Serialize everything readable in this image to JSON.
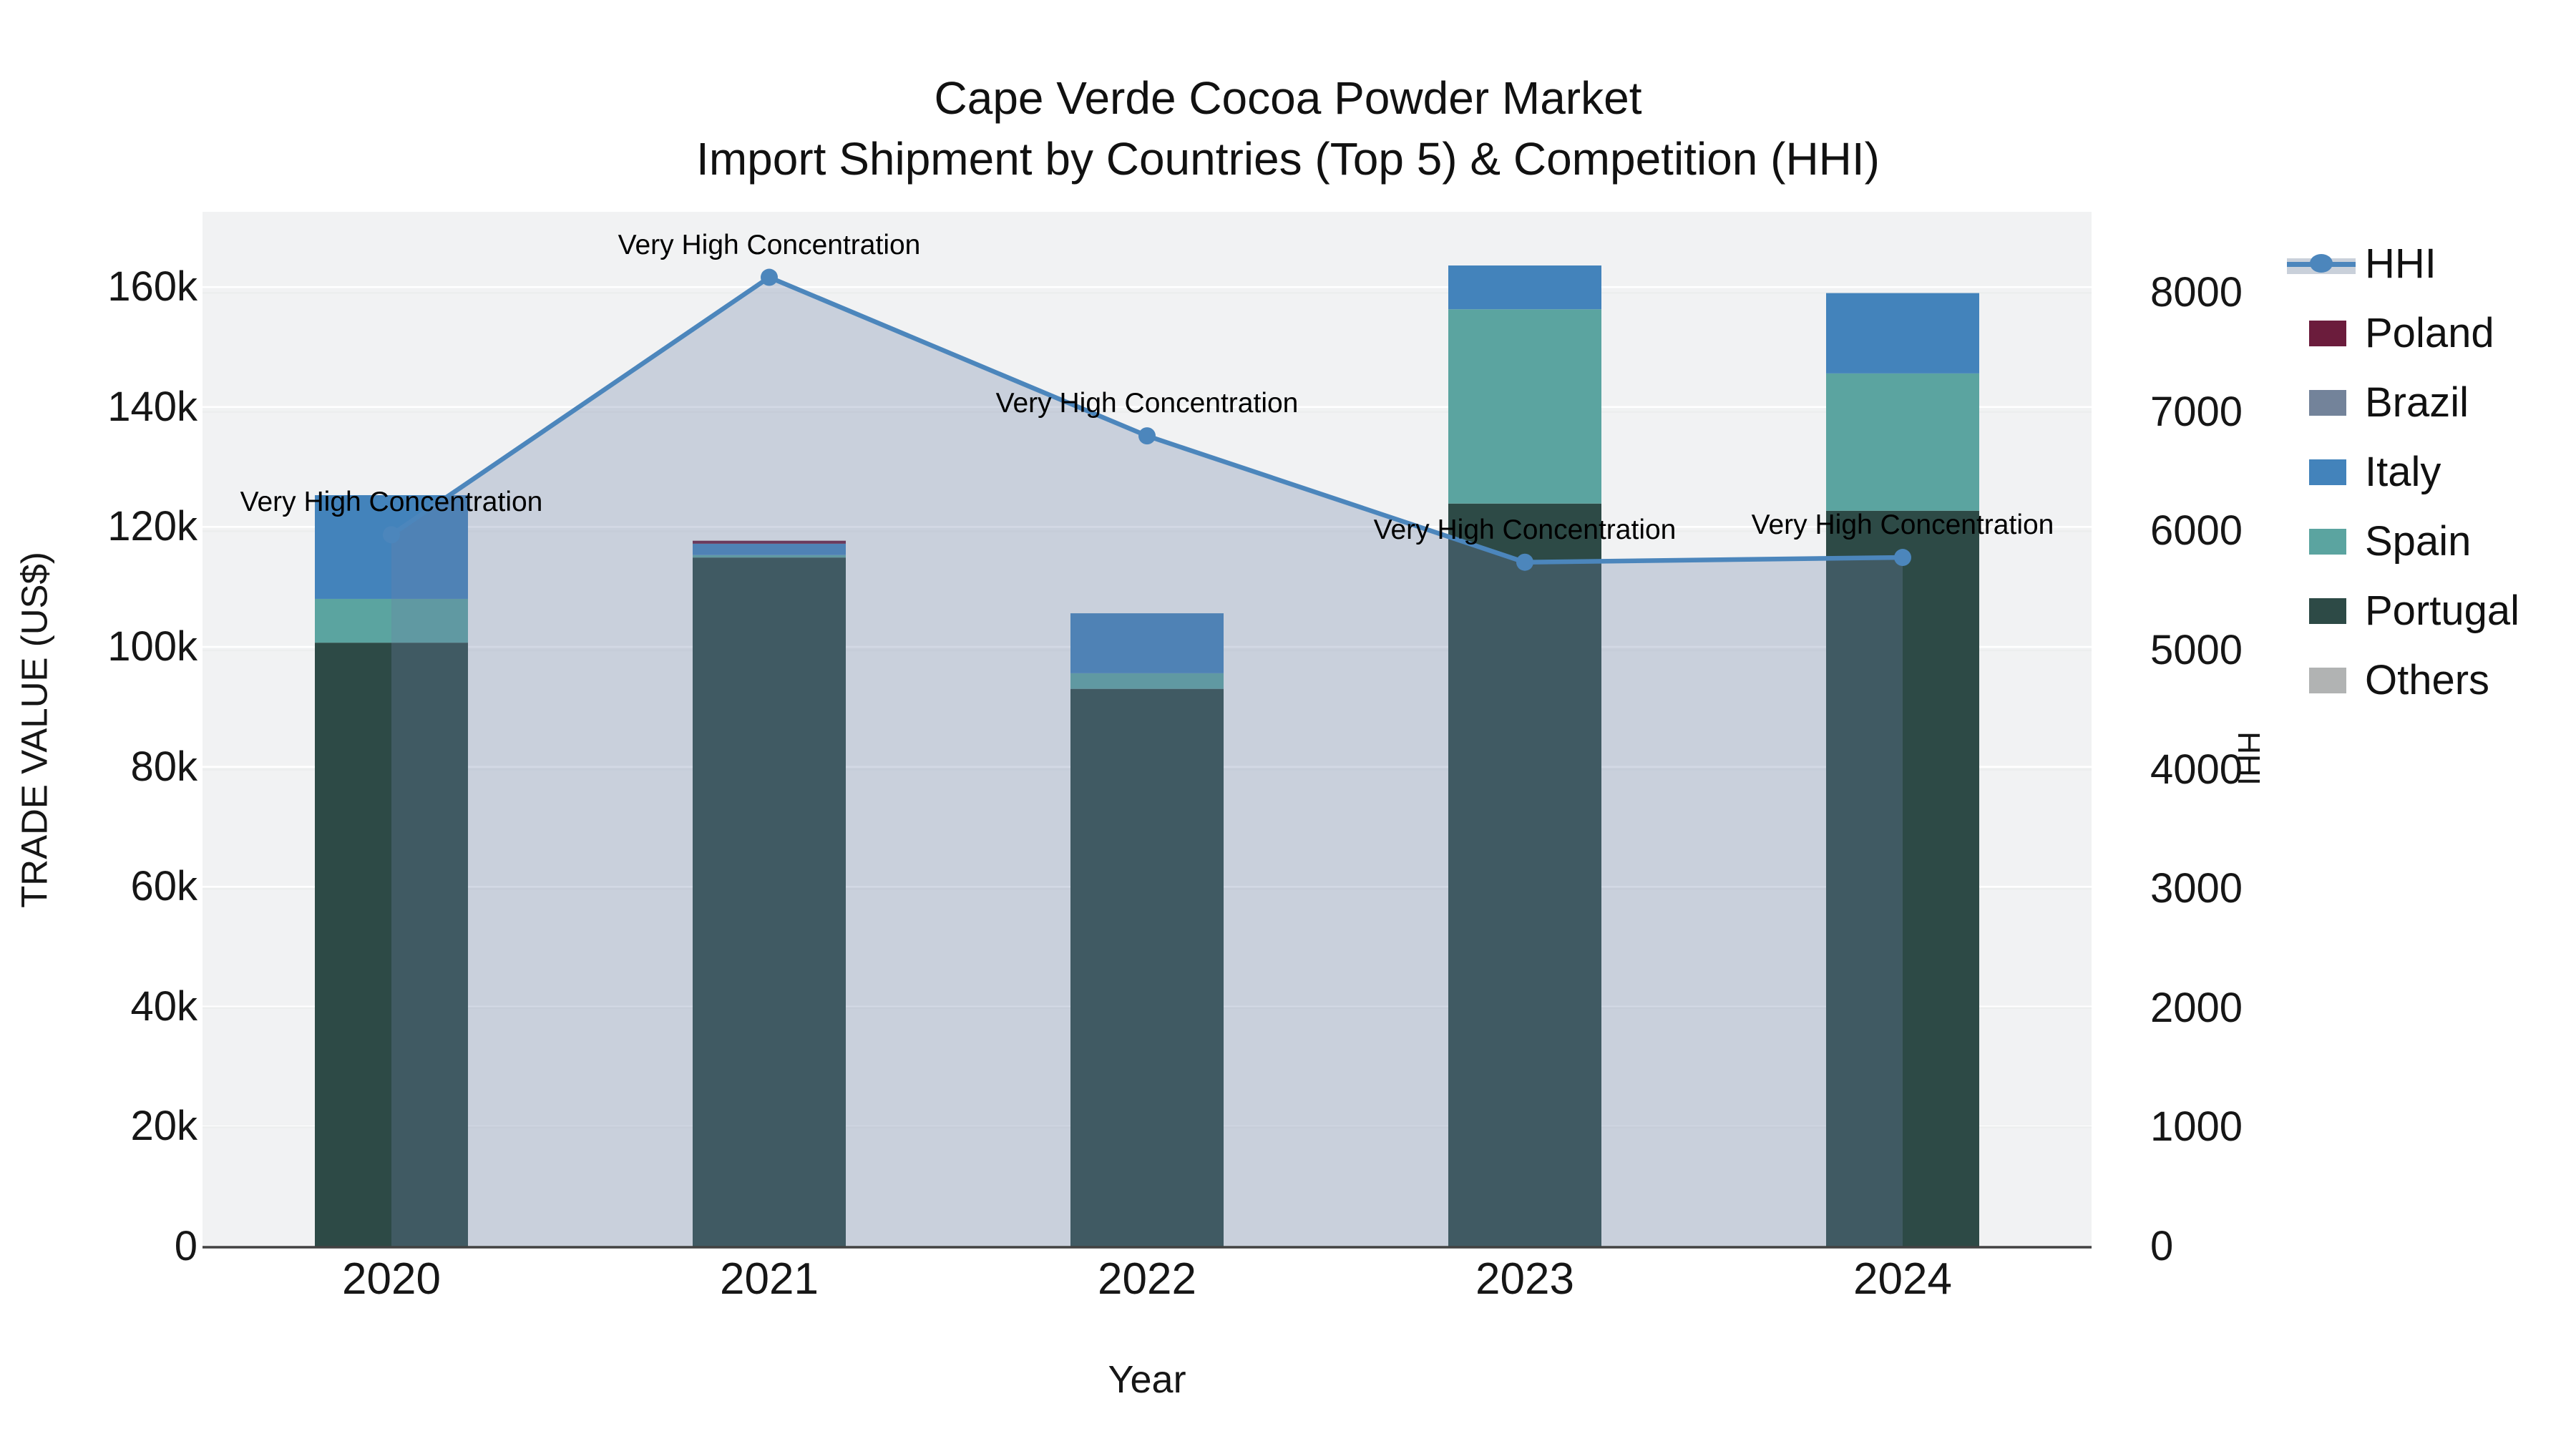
{
  "title": {
    "line1": "Cape Verde Cocoa Powder Market",
    "line2": "Import Shipment by Countries (Top 5) & Competition (HHI)"
  },
  "annotation_text": "Very High Concentration",
  "colors": {
    "figure_bg": "#ffffff",
    "plot_bg": "#f1f2f3",
    "grid_left": "#ffffff",
    "grid_right": "#eceeee",
    "axis_line": "#424242",
    "hhi_line": "#4c86bc",
    "hhi_fill": "rgba(110,130,170,0.30)",
    "poland": "#6b1c3c",
    "brazil": "#73839a",
    "italy": "#4383bb",
    "spain": "#5ba4a0",
    "portugal": "#2d4a46",
    "others": "#b1b3b3"
  },
  "axes": {
    "x": {
      "label": "Year",
      "ticks": [
        "2020",
        "2021",
        "2022",
        "2023",
        "2024"
      ]
    },
    "y_left": {
      "label": "TRADE VALUE (US$)",
      "ticks": [
        "0",
        "20k",
        "40k",
        "60k",
        "80k",
        "100k",
        "120k",
        "140k",
        "160k"
      ],
      "min": 0,
      "max": 170000,
      "step": 20000
    },
    "y_right": {
      "label": "HHI",
      "ticks": [
        "0",
        "1000",
        "2000",
        "3000",
        "4000",
        "5000",
        "6000",
        "7000",
        "8000"
      ],
      "min": 0,
      "max": 8500,
      "step": 1000
    }
  },
  "legend": {
    "items": [
      {
        "label": "HHI",
        "swatch": "line",
        "color": "#4c86bc"
      },
      {
        "label": "Poland",
        "swatch": "color",
        "color": "#6b1c3c"
      },
      {
        "label": "Brazil",
        "swatch": "color",
        "color": "#73839a"
      },
      {
        "label": "Italy",
        "swatch": "color",
        "color": "#4383bb"
      },
      {
        "label": "Spain",
        "swatch": "color",
        "color": "#5ba4a0"
      },
      {
        "label": "Portugal",
        "swatch": "color",
        "color": "#2d4a46"
      },
      {
        "label": "Others",
        "swatch": "color",
        "color": "#b1b3b3"
      }
    ]
  },
  "chart_data": {
    "type": "combo-stacked-bar-line",
    "categories": [
      "2020",
      "2021",
      "2022",
      "2023",
      "2024"
    ],
    "stack_order_bottom_to_top": [
      "Portugal",
      "Spain",
      "Italy",
      "Brazil",
      "Poland",
      "Others"
    ],
    "series": [
      {
        "name": "Portugal",
        "type": "bar",
        "axis": "left",
        "color": "#2d4a46",
        "values": [
          100700,
          114900,
          93000,
          123900,
          122700
        ]
      },
      {
        "name": "Spain",
        "type": "bar",
        "axis": "left",
        "color": "#5ba4a0",
        "values": [
          7300,
          400,
          2600,
          32400,
          22900
        ]
      },
      {
        "name": "Italy",
        "type": "bar",
        "axis": "left",
        "color": "#4383bb",
        "values": [
          17300,
          1900,
          10000,
          7300,
          13400
        ]
      },
      {
        "name": "Brazil",
        "type": "bar",
        "axis": "left",
        "color": "#73839a",
        "values": [
          0,
          0,
          0,
          0,
          0
        ]
      },
      {
        "name": "Poland",
        "type": "bar",
        "axis": "left",
        "color": "#6b1c3c",
        "values": [
          0,
          500,
          0,
          0,
          0
        ]
      },
      {
        "name": "Others",
        "type": "bar",
        "axis": "left",
        "color": "#b1b3b3",
        "values": [
          0,
          0,
          0,
          0,
          0
        ]
      },
      {
        "name": "HHI",
        "type": "line-area",
        "axis": "right",
        "color": "#4c86bc",
        "values": [
          5970,
          8130,
          6800,
          5740,
          5780
        ]
      }
    ],
    "bar_totals": [
      125300,
      117700,
      105500,
      163600,
      159000
    ],
    "annotations": [
      {
        "x": "2020",
        "text": "Very High Concentration"
      },
      {
        "x": "2021",
        "text": "Very High Concentration"
      },
      {
        "x": "2022",
        "text": "Very High Concentration"
      },
      {
        "x": "2023",
        "text": "Very High Concentration"
      },
      {
        "x": "2024",
        "text": "Very High Concentration"
      }
    ],
    "title": "Cape Verde Cocoa Powder Market — Import Shipment by Countries (Top 5) & Competition (HHI)",
    "xlabel": "Year",
    "ylabel_left": "TRADE VALUE (US$)",
    "ylabel_right": "HHI",
    "grid": true,
    "legend_position": "right"
  }
}
